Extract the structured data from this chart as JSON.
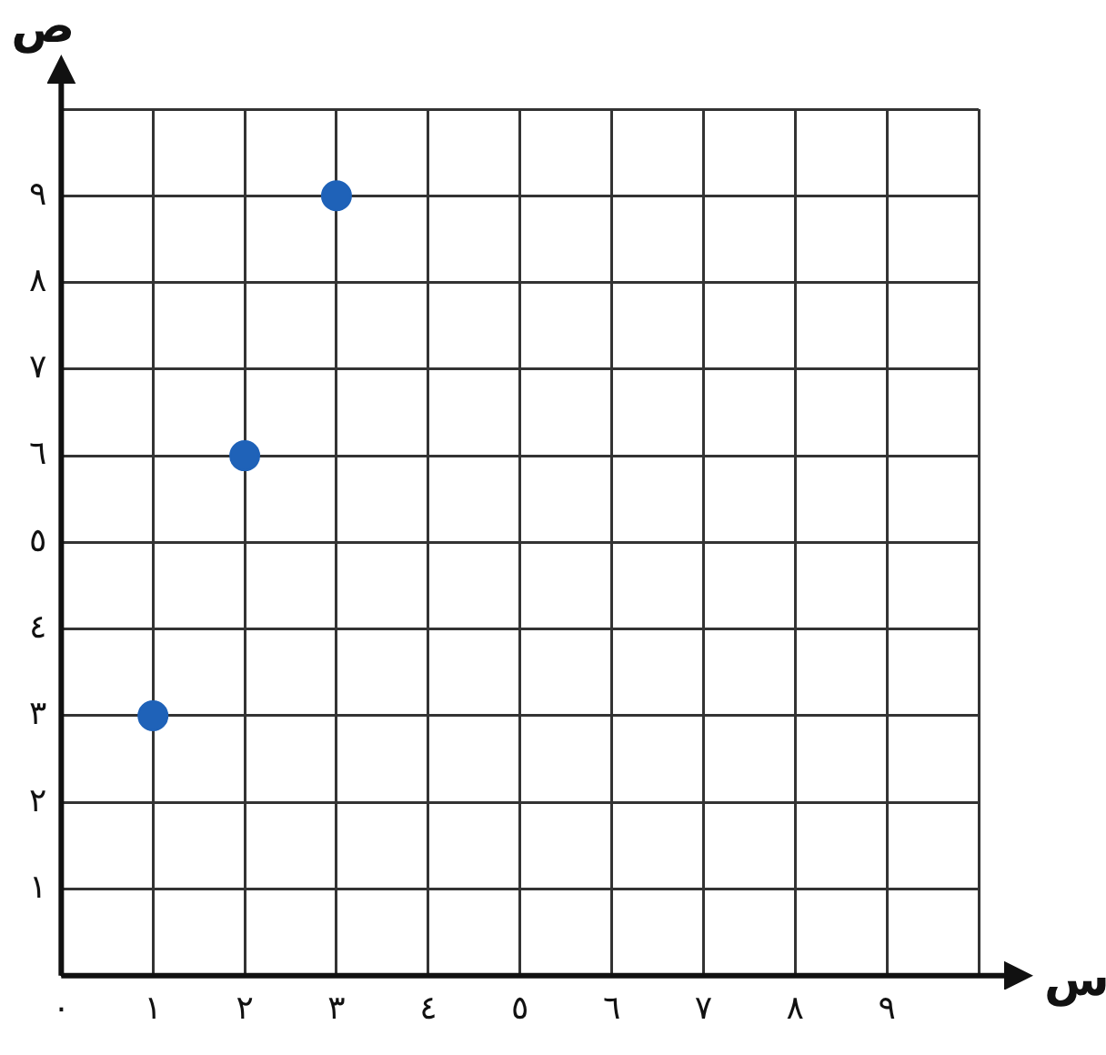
{
  "chart_data": {
    "type": "scatter",
    "xlabel": "س",
    "ylabel": "ص",
    "x": [
      1,
      2,
      3
    ],
    "series": [
      {
        "color": "#1f62b8",
        "values": [
          3,
          6,
          9
        ]
      }
    ],
    "xlim": [
      0,
      10
    ],
    "ylim": [
      0,
      10
    ],
    "xticks": [
      {
        "value": 0,
        "label": "٠"
      },
      {
        "value": 1,
        "label": "١"
      },
      {
        "value": 2,
        "label": "٢"
      },
      {
        "value": 3,
        "label": "٣"
      },
      {
        "value": 4,
        "label": "٤"
      },
      {
        "value": 5,
        "label": "٥"
      },
      {
        "value": 6,
        "label": "٦"
      },
      {
        "value": 7,
        "label": "٧"
      },
      {
        "value": 8,
        "label": "٨"
      },
      {
        "value": 9,
        "label": "٩"
      },
      {
        "value": 10,
        "label": null
      }
    ],
    "yticks": [
      {
        "value": 0,
        "label": null
      },
      {
        "value": 1,
        "label": "١"
      },
      {
        "value": 2,
        "label": "٢"
      },
      {
        "value": 3,
        "label": "٣"
      },
      {
        "value": 4,
        "label": "٤"
      },
      {
        "value": 5,
        "label": "٥"
      },
      {
        "value": 6,
        "label": "٦"
      },
      {
        "value": 7,
        "label": "٧"
      },
      {
        "value": 8,
        "label": "٨"
      },
      {
        "value": 9,
        "label": "٩"
      },
      {
        "value": 10,
        "label": null
      }
    ],
    "grid": true,
    "legend": false,
    "marker": "circle"
  }
}
